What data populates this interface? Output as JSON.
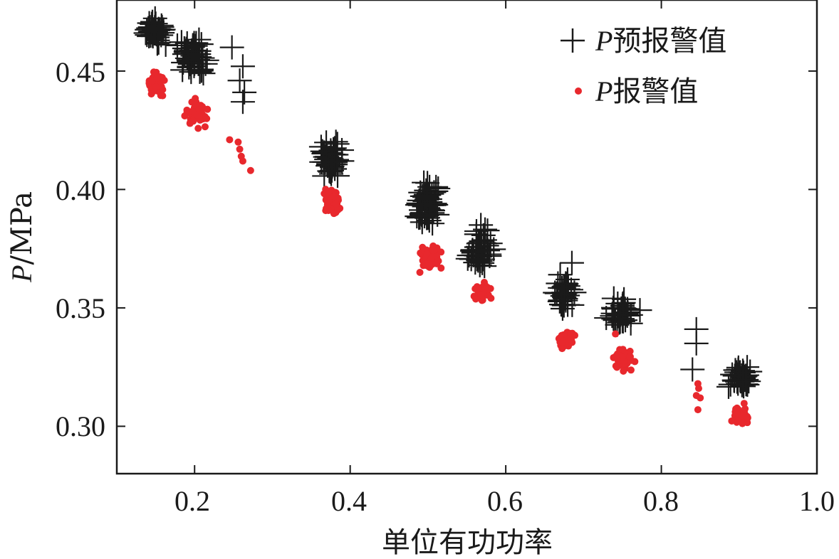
{
  "chart_data": {
    "type": "scatter",
    "title": "",
    "xlabel": "单位有功功率",
    "ylabel_var": "P",
    "ylabel_unit": "/MPa",
    "xlim": [
      0.1,
      1.0
    ],
    "ylim": [
      0.28,
      0.48
    ],
    "xticks": [
      "0.2",
      "0.4",
      "0.6",
      "0.8",
      "1.0"
    ],
    "yticks": [
      "0.30",
      "0.35",
      "0.40",
      "0.45"
    ],
    "legend_position": "top-right",
    "series": [
      {
        "name": "P预报警值",
        "name_var": "P",
        "name_text": "预报警值",
        "marker": "plus",
        "color": "#1a1a1a",
        "clusters": [
          {
            "x": [
              0.13,
              0.17
            ],
            "y": [
              0.459,
              0.474
            ],
            "n": 40
          },
          {
            "x": [
              0.17,
              0.225
            ],
            "y": [
              0.445,
              0.468
            ],
            "n": 50
          },
          {
            "x": [
              0.355,
              0.395
            ],
            "y": [
              0.401,
              0.425
            ],
            "n": 45
          },
          {
            "x": [
              0.475,
              0.525
            ],
            "y": [
              0.381,
              0.405
            ],
            "n": 55
          },
          {
            "x": [
              0.545,
              0.59
            ],
            "y": [
              0.365,
              0.385
            ],
            "n": 45
          },
          {
            "x": [
              0.66,
              0.69
            ],
            "y": [
              0.346,
              0.366
            ],
            "n": 35
          },
          {
            "x": [
              0.725,
              0.775
            ],
            "y": [
              0.34,
              0.357
            ],
            "n": 40
          },
          {
            "x": [
              0.88,
              0.925
            ],
            "y": [
              0.313,
              0.327
            ],
            "n": 40
          }
        ],
        "points": [
          {
            "x": 0.248,
            "y": 0.46
          },
          {
            "x": 0.262,
            "y": 0.452
          },
          {
            "x": 0.258,
            "y": 0.446
          },
          {
            "x": 0.264,
            "y": 0.441
          },
          {
            "x": 0.262,
            "y": 0.437
          },
          {
            "x": 0.568,
            "y": 0.385
          },
          {
            "x": 0.685,
            "y": 0.369
          },
          {
            "x": 0.67,
            "y": 0.364
          },
          {
            "x": 0.845,
            "y": 0.341
          },
          {
            "x": 0.845,
            "y": 0.335
          },
          {
            "x": 0.84,
            "y": 0.324
          }
        ]
      },
      {
        "name": "P报警值",
        "name_var": "P",
        "name_text": "报警值",
        "marker": "dot",
        "color": "#e8282d",
        "clusters": [
          {
            "x": [
              0.135,
              0.165
            ],
            "y": [
              0.438,
              0.452
            ],
            "n": 60
          },
          {
            "x": [
              0.185,
              0.22
            ],
            "y": [
              0.425,
              0.44
            ],
            "n": 60
          },
          {
            "x": [
              0.36,
              0.392
            ],
            "y": [
              0.388,
              0.403
            ],
            "n": 60
          },
          {
            "x": [
              0.485,
              0.52
            ],
            "y": [
              0.363,
              0.378
            ],
            "n": 65
          },
          {
            "x": [
              0.555,
              0.585
            ],
            "y": [
              0.352,
              0.362
            ],
            "n": 55
          },
          {
            "x": [
              0.665,
              0.69
            ],
            "y": [
              0.332,
              0.343
            ],
            "n": 50
          },
          {
            "x": [
              0.735,
              0.77
            ],
            "y": [
              0.322,
              0.334
            ],
            "n": 55
          },
          {
            "x": [
              0.888,
              0.915
            ],
            "y": [
              0.298,
              0.31
            ],
            "n": 55
          }
        ],
        "points": [
          {
            "x": 0.245,
            "y": 0.421
          },
          {
            "x": 0.256,
            "y": 0.42
          },
          {
            "x": 0.258,
            "y": 0.417
          },
          {
            "x": 0.26,
            "y": 0.414
          },
          {
            "x": 0.262,
            "y": 0.412
          },
          {
            "x": 0.272,
            "y": 0.408
          },
          {
            "x": 0.741,
            "y": 0.339
          },
          {
            "x": 0.847,
            "y": 0.318
          },
          {
            "x": 0.848,
            "y": 0.316
          },
          {
            "x": 0.845,
            "y": 0.313
          },
          {
            "x": 0.85,
            "y": 0.312
          },
          {
            "x": 0.847,
            "y": 0.307
          }
        ]
      }
    ]
  }
}
